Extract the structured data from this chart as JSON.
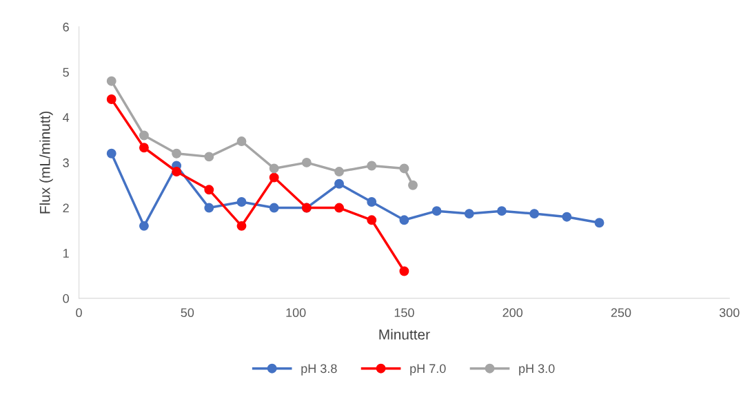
{
  "chart_data": {
    "type": "line",
    "xlabel": "Minutter",
    "ylabel": "Flux (mL/minutt)",
    "xlim": [
      0,
      300
    ],
    "xticks": [
      0,
      50,
      100,
      150,
      200,
      250,
      300
    ],
    "ylim": [
      0,
      6
    ],
    "yticks": [
      0,
      1,
      2,
      3,
      4,
      5,
      6
    ],
    "grid": false,
    "legend": "bottom",
    "marker": "circle",
    "line_style": "solid",
    "series": [
      {
        "name": "pH 3.8",
        "color": "#4472c4",
        "x": [
          15,
          30,
          45,
          60,
          75,
          90,
          105,
          120,
          135,
          150,
          165,
          180,
          195,
          210,
          225,
          240
        ],
        "values": [
          3.2,
          1.6,
          2.93,
          2.0,
          2.13,
          2.0,
          2.0,
          2.53,
          2.13,
          1.73,
          1.93,
          1.87,
          1.93,
          1.87,
          1.8,
          1.67
        ]
      },
      {
        "name": "pH 7.0",
        "color": "#ff0000",
        "x": [
          15,
          30,
          45,
          60,
          75,
          90,
          105,
          120,
          135,
          150
        ],
        "values": [
          4.4,
          3.33,
          2.8,
          2.4,
          1.6,
          2.67,
          2.0,
          2.0,
          1.73,
          0.6
        ]
      },
      {
        "name": "pH 3.0",
        "color": "#a5a5a5",
        "x": [
          15,
          30,
          45,
          60,
          75,
          90,
          105,
          120,
          135,
          150,
          154
        ],
        "values": [
          4.8,
          3.6,
          3.2,
          3.13,
          3.47,
          2.87,
          3.0,
          2.8,
          2.93,
          2.87,
          2.5
        ]
      }
    ]
  }
}
